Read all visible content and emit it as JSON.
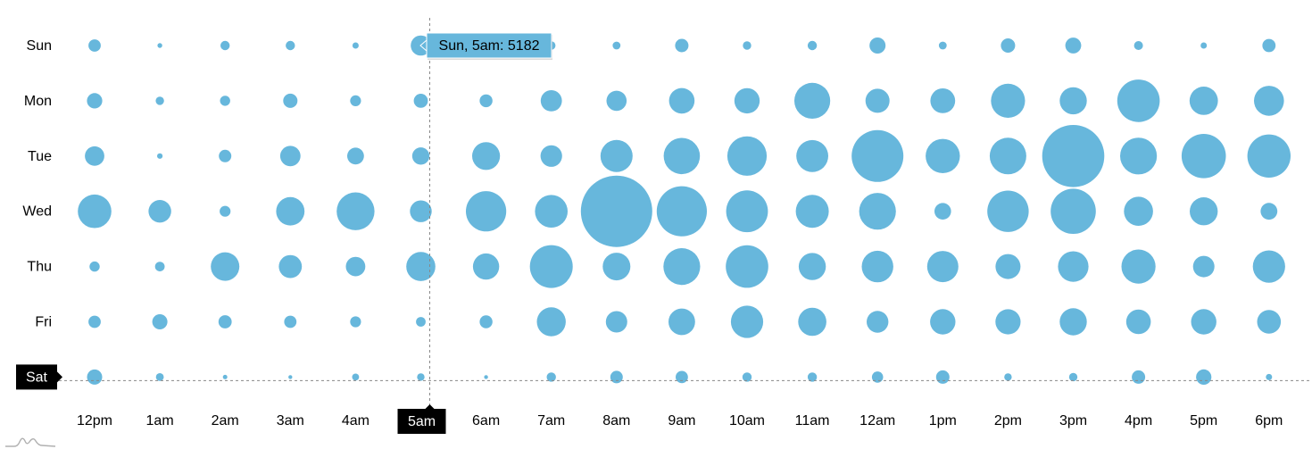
{
  "chart_data": {
    "type": "bubble",
    "days": [
      "Sun",
      "Mon",
      "Tue",
      "Wed",
      "Thu",
      "Fri",
      "Sat"
    ],
    "hours": [
      "12pm",
      "1am",
      "2am",
      "3am",
      "4am",
      "5am",
      "6am",
      "7am",
      "8am",
      "9am",
      "10am",
      "11am",
      "12am",
      "1pm",
      "2pm",
      "3pm",
      "4pm",
      "5pm",
      "6pm"
    ],
    "series": [
      {
        "day": "Sun",
        "values": [
          1900,
          300,
          1100,
          1100,
          500,
          5182,
          900,
          900,
          800,
          2300,
          900,
          1100,
          3300,
          800,
          2600,
          3200,
          1000,
          500,
          2200
        ]
      },
      {
        "day": "Mon",
        "values": [
          3000,
          900,
          1300,
          2600,
          1500,
          2500,
          2100,
          5700,
          5200,
          8300,
          8100,
          16300,
          7400,
          7800,
          14700,
          9400,
          22900,
          10200,
          11400
        ]
      },
      {
        "day": "Tue",
        "values": [
          4800,
          400,
          2000,
          5300,
          3600,
          3800,
          9800,
          5900,
          13100,
          16700,
          19700,
          12900,
          34000,
          14900,
          17000,
          49000,
          17200,
          24900,
          23600
        ]
      },
      {
        "day": "Wed",
        "values": [
          14300,
          6500,
          1500,
          10200,
          18100,
          6000,
          20700,
          13500,
          64700,
          32000,
          22200,
          13900,
          17200,
          3500,
          21700,
          25900,
          10700,
          10000,
          3600
        ]
      },
      {
        "day": "Thu",
        "values": [
          1300,
          1200,
          10400,
          6700,
          4800,
          10800,
          8700,
          23300,
          9700,
          17100,
          22900,
          9400,
          12600,
          12400,
          7900,
          11800,
          14700,
          5800,
          13300
        ]
      },
      {
        "day": "Fri",
        "values": [
          1900,
          2900,
          2200,
          1900,
          1500,
          1200,
          2100,
          10600,
          5800,
          9000,
          13200,
          10100,
          6000,
          8200,
          8000,
          9300,
          7700,
          8200,
          7200
        ]
      },
      {
        "day": "Sat",
        "values": [
          2900,
          800,
          250,
          200,
          600,
          700,
          200,
          1100,
          2000,
          1900,
          1100,
          1100,
          1600,
          2300,
          700,
          900,
          2300,
          3000,
          500
        ]
      }
    ],
    "tooltip": "Sun, 5am: 5182",
    "cursor_x": "5am",
    "cursor_y": "Sat",
    "max_value": 64700
  },
  "colors": {
    "bubble": "#67b7dc",
    "tooltip_border": "#ffffff",
    "axis_tooltip_bg": "#000000",
    "cursor": "#888888"
  },
  "icons": {
    "logo": "amcharts-logo-icon"
  }
}
